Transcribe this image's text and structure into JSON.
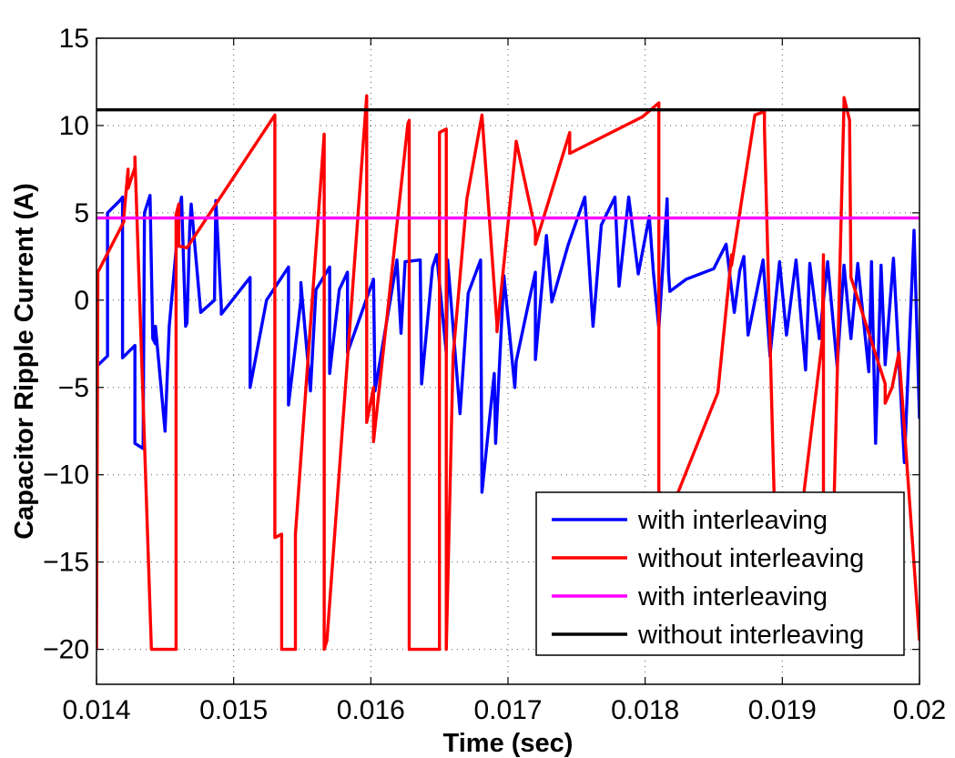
{
  "chart_data": {
    "type": "line",
    "title": "",
    "xlabel": "Time (sec)",
    "ylabel": "Capacitor Ripple Current (A)",
    "xlim": [
      0.014,
      0.02
    ],
    "ylim": [
      -22,
      15
    ],
    "x_ticks": [
      0.014,
      0.015,
      0.016,
      0.017,
      0.018,
      0.019,
      0.02
    ],
    "x_tick_labels": [
      "0.014",
      "0.015",
      "0.016",
      "0.017",
      "0.018",
      "0.019",
      "0.02"
    ],
    "y_ticks": [
      15,
      10,
      5,
      0,
      -5,
      -10,
      -15,
      -20
    ],
    "y_tick_labels": [
      "15",
      "10",
      "5",
      "0",
      "−10",
      "−15",
      "−20"
    ],
    "y_tick_labels_full": [
      "15",
      "10",
      "5",
      "0",
      "−5",
      "−10",
      "−15",
      "−20"
    ],
    "grid": true,
    "legend_position": "bottom-right",
    "series": [
      {
        "name": "with interleaving",
        "color": "#0000ff",
        "x": [
          0.014,
          0.01408,
          0.01408,
          0.01417,
          0.01419,
          0.01419,
          0.01428,
          0.01428,
          0.01434,
          0.01435,
          0.01439,
          0.01441,
          0.01443,
          0.01443,
          0.0145,
          0.01453,
          0.01461,
          0.01462,
          0.01465,
          0.01466,
          0.01468,
          0.01469,
          0.01476,
          0.01486,
          0.01487,
          0.01491,
          0.01491,
          0.01502,
          0.01512,
          0.01512,
          0.01524,
          0.0154,
          0.0154,
          0.01549,
          0.01549,
          0.01556,
          0.0156,
          0.0157,
          0.0157,
          0.01577,
          0.01583,
          0.01583,
          0.01602,
          0.01603,
          0.01618,
          0.01619,
          0.01622,
          0.01625,
          0.01636,
          0.01637,
          0.01645,
          0.01648,
          0.01655,
          0.01656,
          0.01665,
          0.01671,
          0.0168,
          0.01681,
          0.0169,
          0.01691,
          0.01697,
          0.01705,
          0.01706,
          0.01716,
          0.0172,
          0.0172,
          0.01728,
          0.01732,
          0.01744,
          0.01756,
          0.01762,
          0.01763,
          0.01768,
          0.01778,
          0.01781,
          0.01788,
          0.01795,
          0.01803,
          0.01806,
          0.0181,
          0.01815,
          0.01816,
          0.01817,
          0.01818,
          0.0183,
          0.0185,
          0.01859,
          0.01865,
          0.01869,
          0.01872,
          0.01875,
          0.01886,
          0.01891,
          0.01898,
          0.01903,
          0.0191,
          0.01917,
          0.0192,
          0.01927,
          0.01933,
          0.0194,
          0.01945,
          0.0195,
          0.01955,
          0.01963,
          0.01965,
          0.01968,
          0.01972,
          0.01975,
          0.01981,
          0.01989,
          0.01996,
          0.02
        ],
        "y": [
          -3.8,
          -3.2,
          5.0,
          5.7,
          5.9,
          -3.3,
          -2.6,
          -8.2,
          -8.5,
          5.0,
          6.0,
          -2.2,
          -2.5,
          -1.5,
          -7.5,
          -1.5,
          5.5,
          5.9,
          -1.5,
          -1.3,
          4.3,
          5.5,
          -0.7,
          0.0,
          5.7,
          -0.4,
          -0.8,
          0.3,
          1.3,
          -5.0,
          0.0,
          1.9,
          -6.0,
          0.0,
          1.0,
          -5.2,
          0.6,
          1.9,
          -4.2,
          0.6,
          1.6,
          -3.0,
          1.2,
          -5.2,
          1.8,
          2.3,
          -1.9,
          2.2,
          2.3,
          -4.8,
          1.9,
          2.6,
          -3.0,
          2.3,
          -6.5,
          0.4,
          2.3,
          -11.0,
          -4.2,
          -8.2,
          1.4,
          -5.0,
          -3.5,
          0.2,
          1.6,
          -3.4,
          3.7,
          -0.1,
          3.2,
          5.9,
          -1.5,
          -0.6,
          4.3,
          5.9,
          0.8,
          5.9,
          1.5,
          4.8,
          1.6,
          -1.6,
          4.5,
          5.8,
          1.6,
          0.5,
          1.2,
          1.8,
          3.2,
          -0.7,
          1.7,
          2.5,
          -2.0,
          2.3,
          -3.2,
          2.2,
          -2.0,
          2.3,
          -4.0,
          2.1,
          -2.2,
          2.2,
          -3.8,
          2.0,
          -2.2,
          2.1,
          -4.1,
          2.2,
          -8.2,
          2.0,
          -3.7,
          2.4,
          -9.3,
          4.0,
          -6.8
        ]
      },
      {
        "name": "without interleaving",
        "color": "#ff0000",
        "x": [
          0.014,
          0.01401,
          0.0142,
          0.0142,
          0.01423,
          0.01423,
          0.01428,
          0.01428,
          0.0144,
          0.0144,
          0.01458,
          0.01458,
          0.0146,
          0.0146,
          0.01466,
          0.0153,
          0.0153,
          0.01535,
          0.01535,
          0.01545,
          0.01545,
          0.01566,
          0.01566,
          0.01568,
          0.01597,
          0.01597,
          0.01602,
          0.01602,
          0.01627,
          0.01628,
          0.01628,
          0.01639,
          0.0165,
          0.0165,
          0.01655,
          0.01655,
          0.0166,
          0.0167,
          0.01681,
          0.01692,
          0.01692,
          0.01705,
          0.01706,
          0.0172,
          0.0172,
          0.01745,
          0.01745,
          0.01798,
          0.0181,
          0.0181,
          0.01822,
          0.01853,
          0.01863,
          0.01863,
          0.0188,
          0.01887,
          0.01887,
          0.01897,
          0.01902,
          0.01929,
          0.0193,
          0.0193,
          0.01935,
          0.01945,
          0.01945,
          0.01949,
          0.0195,
          0.01975,
          0.01975,
          0.0198,
          0.01985,
          0.02
        ],
        "y": [
          -20.0,
          1.6,
          4.5,
          4.8,
          7.5,
          6.4,
          7.6,
          8.2,
          -20.0,
          -20.0,
          -20.0,
          4.9,
          5.5,
          3.1,
          3.0,
          10.6,
          -13.6,
          -13.4,
          -20.0,
          -20.0,
          -13.4,
          9.5,
          -20.0,
          -19.5,
          11.7,
          -7.0,
          -5.0,
          -8.1,
          10.1,
          10.3,
          -20.0,
          -20.0,
          -20.0,
          9.6,
          9.8,
          -20.0,
          -3.2,
          5.8,
          10.6,
          -1.4,
          -1.8,
          8.2,
          9.1,
          4.0,
          3.2,
          9.6,
          8.4,
          10.5,
          11.3,
          -11.0,
          -11.4,
          -5.3,
          2.6,
          2.0,
          10.6,
          10.8,
          9.8,
          -20.0,
          -20.0,
          -2.4,
          2.6,
          -20.0,
          -20.0,
          11.3,
          11.6,
          10.3,
          1.3,
          -4.8,
          -5.9,
          -5.0,
          -3.0,
          -19.5
        ]
      },
      {
        "name": "with interleaving",
        "color": "#ff00ff",
        "x": [
          0.014,
          0.02
        ],
        "y": [
          4.7,
          4.7
        ]
      },
      {
        "name": "without interleaving",
        "color": "#000000",
        "x": [
          0.014,
          0.02
        ],
        "y": [
          10.9,
          10.9
        ]
      }
    ]
  }
}
